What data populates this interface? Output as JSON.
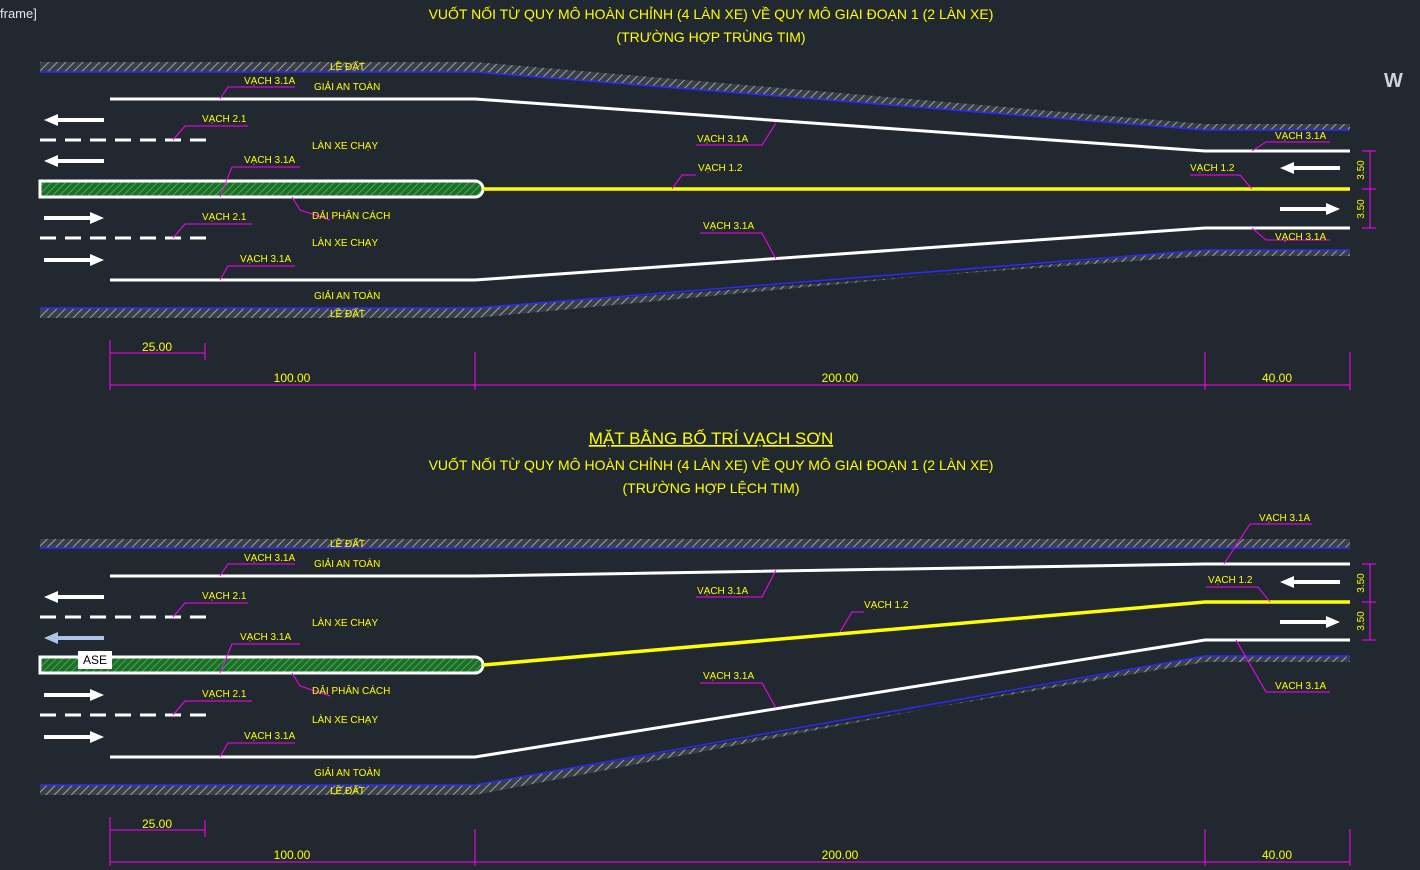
{
  "window": {
    "frame_label": "frame]",
    "viewcube_letter": "W"
  },
  "drawing_1": {
    "title_line1": "VUỐT NỐI TỪ QUY MÔ HOÀN CHỈNH (4 LÀN XE) VỀ QUY MÔ GIAI ĐOẠN 1 (2 LÀN XE)",
    "title_line2": "(TRƯỜNG HỢP TRÙNG TIM)",
    "labels": {
      "le_dat_top": "LỀ ĐẤT",
      "giai_an_toan_top": "GIẢI AN TOÀN",
      "vach_31a_1": "VẠCH 3.1A",
      "vach_21_top": "VẠCH 2.1",
      "vach_31a_taper": "VẠCH 3.1A",
      "vach_31a_end_top": "VẠCH 3.1A",
      "lan_xe_chay_top": "LÀN XE CHẠY",
      "vach_31a_median": "VẠCH 3.1A",
      "vach_12_mid": "VẠCH 1.2",
      "vach_12_end": "VẠCH 1.2",
      "dai_phan_cach": "DẢI PHÂN CÁCH",
      "vach_21_bottom": "VẠCH 2.1",
      "vach_31a_lower_taper": "VẠCH 3.1A",
      "vach_31a_end_bottom": "VẠCH 3.1A",
      "lan_xe_chay_bottom": "LÀN XE CHẠY",
      "vach_31a_bottom": "VẠCH 3.1A",
      "giai_an_toan_bottom": "GIẢI AN TOÀN",
      "le_dat_bottom": "LỀ ĐẤT",
      "lane_width_1": "3.50",
      "lane_width_2": "3.50"
    },
    "dimensions": {
      "d25": "25.00",
      "d100": "100.00",
      "d200": "200.00",
      "d40": "40.00"
    }
  },
  "drawing_2": {
    "main_title": "MẶT BẰNG BỐ TRÍ VẠCH SƠN",
    "title_line1": "VUỐT NỐI TỪ QUY MÔ HOÀN CHỈNH (4 LÀN XE) VỀ QUY MÔ GIAI ĐOẠN 1 (2 LÀN XE)",
    "title_line2": "(TRƯỜNG HỢP LỆCH TIM)",
    "labels": {
      "vach_31a_top_right": "VẠCH 3.1A",
      "le_dat_top": "LỀ ĐẤT",
      "vach_31a_1": "VẠCH 3.1A",
      "giai_an_toan_top": "GIẢI AN TOÀN",
      "vach_12_end": "VẠCH 1.2",
      "vach_21_top": "VẠCH 2.1",
      "vach_31a_taper": "VẠCH 3.1A",
      "vach_12_mid": "VẠCH 1.2",
      "lan_xe_chay_top": "LÀN XE CHẠY",
      "vach_31a_median": "VẠCH 3.1A",
      "ase_tag": "ASE",
      "dai_phan_cach": "DẢI PHÂN CÁCH",
      "vach_31a_lower_taper": "VẠCH 3.1A",
      "vach_31a_end_bottom": "VẠCH 3.1A",
      "vach_21_bottom": "VẠCH 2.1",
      "lan_xe_chay_bottom": "LÀN XE CHẠY",
      "vach_31a_bottom": "VẠCH 3.1A",
      "giai_an_toan_bottom": "GIẢI AN TOÀN",
      "le_dat_bottom": "LỀ ĐẤT",
      "lane_width_1": "3.50",
      "lane_width_2": "3.50"
    },
    "dimensions": {
      "d25": "25.00",
      "d100": "100.00",
      "d200": "200.00",
      "d40": "40.00"
    }
  },
  "colors": {
    "background": "#212830",
    "label_text": "#ffff00",
    "leader": "#ff00ff",
    "lane_line": "#ffffff",
    "center_line": "#ffff00",
    "edge_hatch": "#8a8f96",
    "edge_outline": "#2a2aff",
    "median_fill": "#2f8f3a"
  }
}
